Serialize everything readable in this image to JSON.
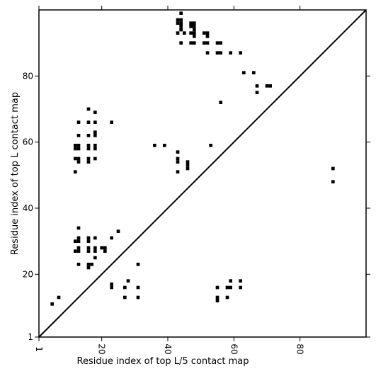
{
  "chart_data": {
    "type": "scatter",
    "xlabel": "Residue index of top L/5 contact map",
    "ylabel": "Residue index of top L contact map",
    "xlim": [
      1,
      100
    ],
    "ylim": [
      1,
      100
    ],
    "x_ticks": [
      {
        "value": 1,
        "label": "1"
      },
      {
        "value": 20,
        "label": "20"
      },
      {
        "value": 40,
        "label": "40"
      },
      {
        "value": 60,
        "label": "60"
      },
      {
        "value": 80,
        "label": "80"
      }
    ],
    "y_ticks": [
      {
        "value": 1,
        "label": "1"
      },
      {
        "value": 20,
        "label": "20"
      },
      {
        "value": 40,
        "label": "40"
      },
      {
        "value": 60,
        "label": "60"
      },
      {
        "value": 80,
        "label": "80"
      }
    ],
    "diagonal": true,
    "marker_color": "#000000",
    "grid": false,
    "upper_points": [
      [
        44,
        99
      ],
      [
        43,
        97
      ],
      [
        44,
        97
      ],
      [
        43,
        96
      ],
      [
        44,
        96
      ],
      [
        47,
        96
      ],
      [
        48,
        96
      ],
      [
        44,
        95
      ],
      [
        47,
        95
      ],
      [
        48,
        95
      ],
      [
        44,
        94
      ],
      [
        48,
        94
      ],
      [
        43,
        93
      ],
      [
        45,
        93
      ],
      [
        47,
        93
      ],
      [
        48,
        93
      ],
      [
        51,
        93
      ],
      [
        52,
        93
      ],
      [
        52,
        92
      ],
      [
        48,
        92
      ],
      [
        44,
        90
      ],
      [
        47,
        90
      ],
      [
        48,
        90
      ],
      [
        51,
        90
      ],
      [
        52,
        90
      ],
      [
        55,
        90
      ],
      [
        56,
        90
      ],
      [
        52,
        87
      ],
      [
        55,
        87
      ],
      [
        56,
        87
      ],
      [
        59,
        87
      ],
      [
        62,
        87
      ],
      [
        63,
        81
      ],
      [
        66,
        81
      ],
      [
        67,
        77
      ],
      [
        70,
        77
      ],
      [
        71,
        77
      ],
      [
        67,
        75
      ],
      [
        56,
        72
      ],
      [
        16,
        70
      ],
      [
        18,
        69
      ],
      [
        13,
        66
      ],
      [
        16,
        66
      ],
      [
        18,
        66
      ],
      [
        23,
        66
      ],
      [
        13,
        62
      ],
      [
        16,
        62
      ],
      [
        18,
        63
      ],
      [
        18,
        62
      ],
      [
        12,
        59
      ],
      [
        13,
        59
      ],
      [
        16,
        59
      ],
      [
        18,
        59
      ],
      [
        36,
        59
      ],
      [
        39,
        59
      ],
      [
        53,
        59
      ],
      [
        12,
        58
      ],
      [
        13,
        58
      ],
      [
        16,
        58
      ],
      [
        18,
        58
      ],
      [
        43,
        57
      ],
      [
        12,
        55
      ],
      [
        13,
        55
      ],
      [
        16,
        55
      ],
      [
        18,
        55
      ],
      [
        43,
        55
      ],
      [
        13,
        54
      ],
      [
        16,
        54
      ],
      [
        43,
        54
      ],
      [
        46,
        54
      ],
      [
        46,
        53
      ],
      [
        46,
        52
      ],
      [
        12,
        51
      ],
      [
        43,
        51
      ],
      [
        90,
        52
      ],
      [
        90,
        48
      ],
      [
        13,
        34
      ],
      [
        25,
        33
      ],
      [
        13,
        31
      ],
      [
        16,
        31
      ],
      [
        18,
        31
      ],
      [
        23,
        31
      ],
      [
        12,
        30
      ],
      [
        13,
        30
      ],
      [
        16,
        30
      ],
      [
        13,
        28
      ],
      [
        16,
        28
      ],
      [
        18,
        28
      ],
      [
        20,
        28
      ],
      [
        21,
        28
      ],
      [
        12,
        27
      ],
      [
        13,
        27
      ],
      [
        16,
        27
      ],
      [
        18,
        27
      ],
      [
        21,
        27
      ],
      [
        18,
        25
      ],
      [
        13,
        23
      ],
      [
        16,
        23
      ],
      [
        17,
        23
      ],
      [
        31,
        23
      ],
      [
        16,
        22
      ]
    ],
    "lower_points": [
      [
        28,
        18
      ],
      [
        23,
        17
      ],
      [
        59,
        18
      ],
      [
        62,
        18
      ],
      [
        23,
        16
      ],
      [
        27,
        16
      ],
      [
        31,
        16
      ],
      [
        55,
        16
      ],
      [
        58,
        16
      ],
      [
        59,
        16
      ],
      [
        62,
        16
      ],
      [
        7,
        13
      ],
      [
        27,
        13
      ],
      [
        31,
        13
      ],
      [
        55,
        13
      ],
      [
        58,
        13
      ],
      [
        55,
        12
      ],
      [
        5,
        11
      ]
    ]
  }
}
